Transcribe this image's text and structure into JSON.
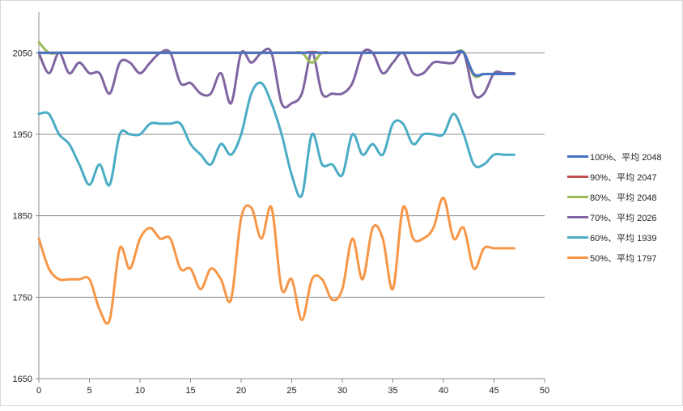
{
  "chart_data": {
    "type": "line",
    "title": "",
    "xlabel": "",
    "ylabel": "",
    "xlim": [
      0,
      50
    ],
    "ylim": [
      1650,
      2100
    ],
    "x_ticks": [
      "0",
      "5",
      "10",
      "15",
      "20",
      "25",
      "30",
      "35",
      "40",
      "45",
      "50"
    ],
    "y_ticks": [
      "1650",
      "1750",
      "1850",
      "1950",
      "2050"
    ],
    "grid": "horizontal",
    "legend_position": "right",
    "x": [
      0,
      1,
      2,
      3,
      4,
      5,
      6,
      7,
      8,
      9,
      10,
      11,
      12,
      13,
      14,
      15,
      16,
      17,
      18,
      19,
      20,
      21,
      22,
      23,
      24,
      25,
      26,
      27,
      28,
      29,
      30,
      31,
      32,
      33,
      34,
      35,
      36,
      37,
      38,
      39,
      40,
      41,
      42,
      43,
      44,
      45,
      46,
      47
    ],
    "series": [
      {
        "name": "100%、平均 2048",
        "color": "#4472c4",
        "values": [
          2050,
          2050,
          2050,
          2050,
          2050,
          2050,
          2050,
          2050,
          2050,
          2050,
          2050,
          2050,
          2050,
          2050,
          2050,
          2050,
          2050,
          2050,
          2050,
          2050,
          2050,
          2050,
          2050,
          2050,
          2050,
          2050,
          2050,
          2050,
          2050,
          2050,
          2050,
          2050,
          2050,
          2050,
          2050,
          2050,
          2050,
          2050,
          2050,
          2050,
          2050,
          2050,
          2050,
          2024,
          2024,
          2024,
          2024,
          2024
        ]
      },
      {
        "name": "90%、平均 2047",
        "color": "#c0504d",
        "values": [
          2050,
          2050,
          2050,
          2050,
          2050,
          2050,
          2050,
          2050,
          2050,
          2050,
          2050,
          2050,
          2050,
          2050,
          2050,
          2050,
          2050,
          2050,
          2050,
          2050,
          2050,
          2050,
          2050,
          2050,
          2050,
          2050,
          2050,
          2051,
          2050,
          2050,
          2050,
          2050,
          2050,
          2050,
          2050,
          2050,
          2050,
          2050,
          2050,
          2050,
          2050,
          2050,
          2050,
          2024,
          2024,
          2024,
          2024,
          2024
        ]
      },
      {
        "name": "80%、平均 2048",
        "color": "#9bbb59",
        "values": [
          2063,
          2050,
          2050,
          2050,
          2050,
          2050,
          2050,
          2050,
          2050,
          2050,
          2050,
          2050,
          2050,
          2050,
          2050,
          2050,
          2050,
          2050,
          2050,
          2050,
          2050,
          2050,
          2050,
          2050,
          2050,
          2050,
          2050,
          2038,
          2050,
          2050,
          2050,
          2050,
          2050,
          2050,
          2050,
          2050,
          2050,
          2050,
          2050,
          2050,
          2050,
          2050,
          2051,
          2022,
          2024,
          2024,
          2024,
          2024
        ]
      },
      {
        "name": "70%、平均 2026",
        "color": "#8064a2",
        "values": [
          2050,
          2025,
          2050,
          2025,
          2038,
          2025,
          2025,
          2000,
          2038,
          2038,
          2025,
          2038,
          2050,
          2050,
          2013,
          2013,
          2000,
          2000,
          2025,
          1988,
          2050,
          2038,
          2050,
          2050,
          1988,
          1988,
          2000,
          2050,
          2000,
          2000,
          2000,
          2013,
          2050,
          2050,
          2025,
          2038,
          2050,
          2025,
          2025,
          2038,
          2038,
          2038,
          2050,
          2000,
          2000,
          2025,
          2025,
          2025
        ]
      },
      {
        "name": "60%、平均 1939",
        "color": "#4bacc6",
        "values": [
          1975,
          1975,
          1950,
          1938,
          1913,
          1888,
          1913,
          1888,
          1950,
          1950,
          1950,
          1963,
          1963,
          1963,
          1963,
          1938,
          1925,
          1913,
          1938,
          1925,
          1950,
          2000,
          2013,
          1988,
          1950,
          1900,
          1875,
          1950,
          1913,
          1913,
          1900,
          1950,
          1925,
          1938,
          1925,
          1963,
          1963,
          1938,
          1950,
          1950,
          1950,
          1975,
          1950,
          1913,
          1913,
          1925,
          1925,
          1925
        ]
      },
      {
        "name": "50%、平均 1797",
        "color": "#f79646",
        "values": [
          1822,
          1785,
          1772,
          1772,
          1772,
          1772,
          1735,
          1722,
          1810,
          1785,
          1822,
          1835,
          1822,
          1822,
          1785,
          1785,
          1760,
          1785,
          1772,
          1747,
          1847,
          1860,
          1822,
          1860,
          1760,
          1772,
          1722,
          1772,
          1772,
          1747,
          1760,
          1822,
          1772,
          1835,
          1822,
          1760,
          1860,
          1822,
          1822,
          1835,
          1872,
          1822,
          1835,
          1785,
          1810,
          1810,
          1810,
          1810
        ]
      }
    ]
  }
}
